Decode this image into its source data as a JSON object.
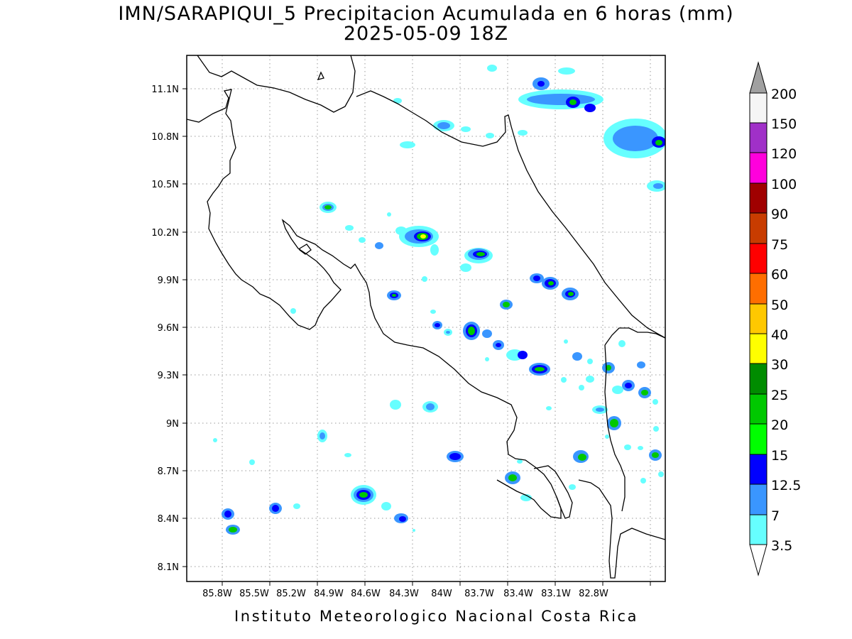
{
  "title_line1": "IMN/SARAPIQUI_5 Precipitacion Acumulada en 6 horas (mm)",
  "title_line2": "2025-05-09 18Z",
  "footer": "Instituto Meteorologico Nacional Costa Rica",
  "lat_ticks": [
    "11.1N",
    "10.8N",
    "10.5N",
    "10.2N",
    "9.9N",
    "9.6N",
    "9.3N",
    "9N",
    "8.7N",
    "8.4N",
    "8.1N"
  ],
  "lon_ticks": [
    "85.8W",
    "85.5W",
    "85.2W",
    "84.9W",
    "84.6W",
    "84.3W",
    "84W",
    "83.7W",
    "83.4W",
    "83.1W",
    "82.8W"
  ],
  "legend": {
    "levels": [
      "200",
      "150",
      "120",
      "100",
      "90",
      "75",
      "60",
      "50",
      "40",
      "30",
      "25",
      "20",
      "15",
      "12.5",
      "7",
      "3.5"
    ],
    "colors": {
      "over": "#a0a0a0",
      "150-200": "#f5f5f5",
      "120-150": "#a030c8",
      "100-120": "#ff00dc",
      "90-100": "#a00000",
      "75-90": "#c83c00",
      "60-75": "#ff0000",
      "50-60": "#ff6e00",
      "40-50": "#ffc800",
      "30-40": "#ffff00",
      "25-30": "#008c00",
      "20-25": "#00c800",
      "15-20": "#00ff00",
      "12.5-15": "#0000ff",
      "7-12.5": "#3a96ff",
      "3.5-7": "#66ffff"
    }
  }
}
